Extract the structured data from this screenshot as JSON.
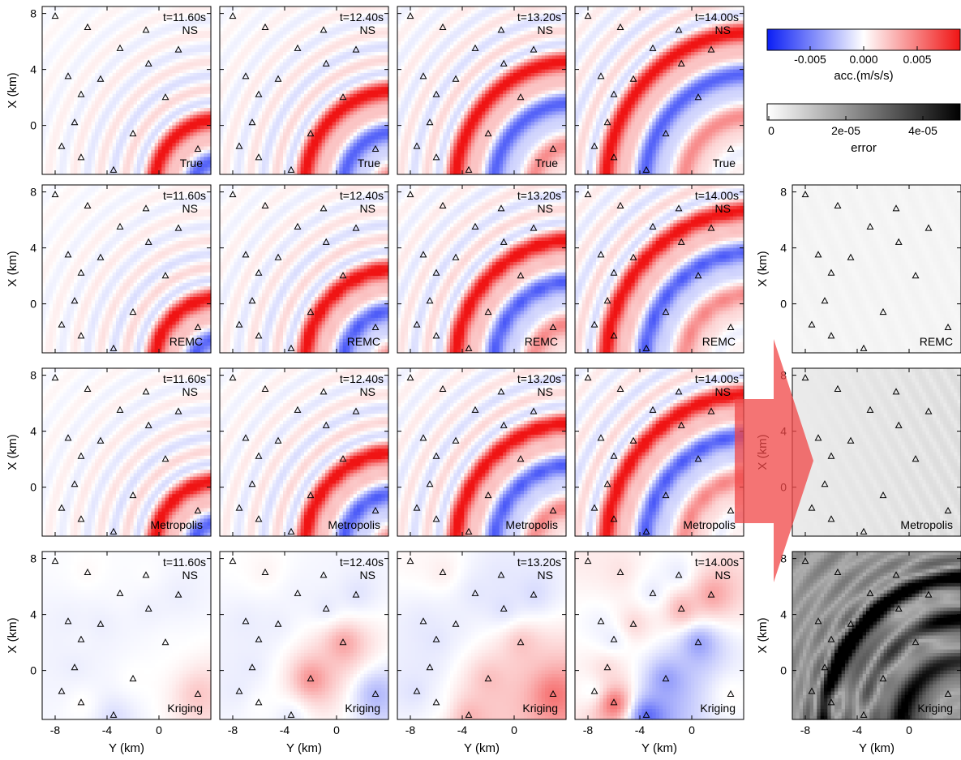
{
  "chart_data": {
    "type": "heatmap",
    "time_labels": [
      "t=11.60s",
      "t=12.40s",
      "t=13.20s",
      "t=14.00s"
    ],
    "component": "NS",
    "methods": [
      "True",
      "REMC",
      "Metropolis",
      "Kriging"
    ],
    "error_panel_methods": [
      "REMC",
      "Metropolis",
      "Kriging"
    ],
    "xlabel": "Y (km)",
    "ylabel": "X (km)",
    "xlim": [
      -9,
      4
    ],
    "ylim": [
      -3.5,
      8.5
    ],
    "x_ticks": [
      "-8",
      "-4",
      "0"
    ],
    "y_ticks": [
      "8",
      "4",
      "0"
    ],
    "stations": [
      {
        "y": -8.0,
        "x": 7.8
      },
      {
        "y": -5.5,
        "x": 7.0
      },
      {
        "y": -3.0,
        "x": 5.5
      },
      {
        "y": -1.0,
        "x": 6.8
      },
      {
        "y": -0.8,
        "x": 4.4
      },
      {
        "y": 1.5,
        "x": 5.4
      },
      {
        "y": -7.0,
        "x": 3.5
      },
      {
        "y": -4.5,
        "x": 3.3
      },
      {
        "y": 0.5,
        "x": 2.0
      },
      {
        "y": -6.0,
        "x": 2.2
      },
      {
        "y": -6.5,
        "x": 0.2
      },
      {
        "y": -2.0,
        "x": -0.6
      },
      {
        "y": -7.5,
        "x": -1.5
      },
      {
        "y": -6.0,
        "x": -2.3
      },
      {
        "y": 3.0,
        "x": -1.7
      },
      {
        "y": -3.5,
        "x": -3.2
      }
    ],
    "colorbars": [
      {
        "label": "acc.(m/s/s)",
        "ticks": [
          "-0.005",
          "0.000",
          "0.005"
        ],
        "range": [
          -0.008,
          0.008
        ],
        "colors": [
          "#0a1ef5",
          "#ffffff",
          "#f01414"
        ]
      },
      {
        "label": "error",
        "ticks": [
          "0",
          "2e-05",
          "4e-05"
        ],
        "range": [
          0,
          5e-05
        ],
        "colors": [
          "#ffffff",
          "#000000"
        ]
      }
    ],
    "arrow_color": "#f04646"
  }
}
